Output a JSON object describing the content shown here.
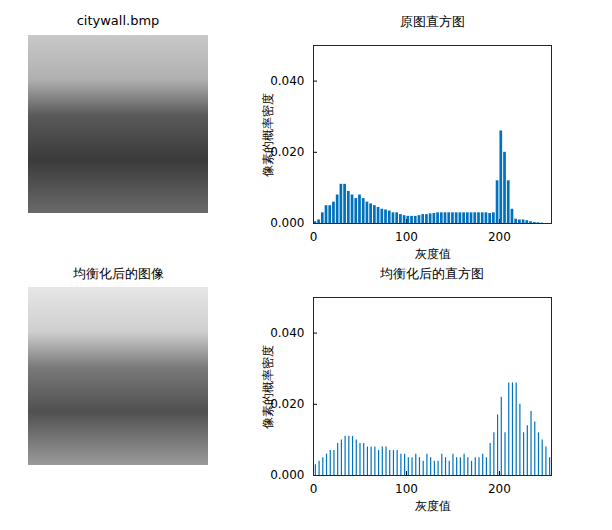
{
  "images": [
    {
      "title": "citywall.bmp"
    },
    {
      "title": "均衡化后的图像"
    }
  ],
  "chart_data": [
    {
      "type": "histogram",
      "title": "原图直方图",
      "x_label": "灰度值",
      "y_label": "像素的概率密度",
      "color": "#0072bd",
      "bins": [
        0,
        4,
        8,
        12,
        16,
        20,
        24,
        28,
        32,
        36,
        40,
        44,
        48,
        52,
        56,
        60,
        64,
        68,
        72,
        76,
        80,
        84,
        88,
        92,
        96,
        100,
        104,
        108,
        112,
        116,
        120,
        124,
        128,
        132,
        136,
        140,
        144,
        148,
        152,
        156,
        160,
        164,
        168,
        172,
        176,
        180,
        184,
        188,
        192,
        196,
        200,
        204,
        208,
        212,
        216,
        220,
        224,
        228,
        232,
        236,
        240,
        244,
        248,
        252,
        256
      ],
      "values": [
        0.0005,
        0.001,
        0.003,
        0.005,
        0.005,
        0.006,
        0.008,
        0.011,
        0.011,
        0.009,
        0.008,
        0.007,
        0.008,
        0.007,
        0.006,
        0.0055,
        0.005,
        0.0045,
        0.004,
        0.0038,
        0.0035,
        0.003,
        0.003,
        0.0025,
        0.0022,
        0.002,
        0.002,
        0.002,
        0.0022,
        0.0025,
        0.0025,
        0.0027,
        0.0028,
        0.003,
        0.003,
        0.003,
        0.003,
        0.003,
        0.003,
        0.003,
        0.003,
        0.003,
        0.003,
        0.003,
        0.003,
        0.003,
        0.003,
        0.0028,
        0.003,
        0.012,
        0.026,
        0.02,
        0.012,
        0.004,
        0.0012,
        0.001,
        0.001,
        0.0008,
        0.0005,
        0.0003,
        0.0002,
        0.0001,
        0,
        0
      ],
      "xlim": [
        0,
        256
      ],
      "xticks": [
        0,
        100,
        200
      ],
      "ylim": [
        0,
        0.05
      ],
      "yticks": [
        0,
        0.02,
        0.04
      ]
    },
    {
      "type": "bar",
      "title": "均衡化后的直方图",
      "x_label": "灰度值",
      "y_label": "像素的概率密度",
      "color": "#0072bd",
      "x": [
        2,
        6,
        10,
        14,
        18,
        22,
        26,
        30,
        34,
        38,
        42,
        46,
        50,
        54,
        58,
        62,
        66,
        70,
        74,
        78,
        82,
        86,
        90,
        94,
        98,
        102,
        106,
        110,
        114,
        118,
        122,
        126,
        130,
        134,
        138,
        142,
        146,
        150,
        154,
        158,
        162,
        166,
        170,
        174,
        178,
        182,
        186,
        190,
        194,
        198,
        202,
        206,
        210,
        214,
        218,
        222,
        226,
        230,
        234,
        238,
        242,
        246,
        250,
        254
      ],
      "values": [
        0.003,
        0.004,
        0.005,
        0.006,
        0.007,
        0.007,
        0.009,
        0.01,
        0.011,
        0.011,
        0.011,
        0.01,
        0.009,
        0.009,
        0.008,
        0.008,
        0.008,
        0.007,
        0.008,
        0.008,
        0.007,
        0.007,
        0.007,
        0.006,
        0.006,
        0.005,
        0.005,
        0.006,
        0.005,
        0.004,
        0.006,
        0.005,
        0.004,
        0.004,
        0.006,
        0.005,
        0.004,
        0.006,
        0.005,
        0.005,
        0.006,
        0.005,
        0.004,
        0.005,
        0.005,
        0.006,
        0.005,
        0.009,
        0.012,
        0.017,
        0.022,
        0.012,
        0.026,
        0.026,
        0.026,
        0.02,
        0.012,
        0.014,
        0.018,
        0.015,
        0.012,
        0.01,
        0.008,
        0.005
      ],
      "xlim": [
        0,
        256
      ],
      "xticks": [
        0,
        100,
        200
      ],
      "ylim": [
        0,
        0.05
      ],
      "yticks": [
        0,
        0.02,
        0.04
      ]
    }
  ]
}
